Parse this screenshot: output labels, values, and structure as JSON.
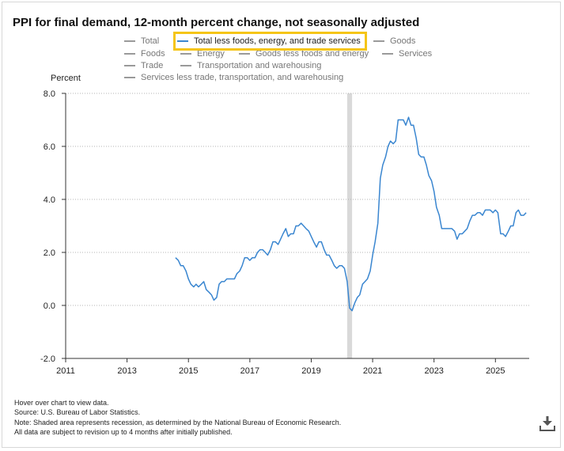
{
  "chart_title": "PPI for final demand, 12-month percent change, not seasonally adjusted",
  "legend": [
    {
      "label": "Total",
      "active": false
    },
    {
      "label": "Total less foods, energy, and trade services",
      "active": true
    },
    {
      "label": "Goods",
      "active": false
    },
    {
      "label": "Foods",
      "active": false
    },
    {
      "label": "Energy",
      "active": false
    },
    {
      "label": "Goods less foods and energy",
      "active": false
    },
    {
      "label": "Services",
      "active": false
    },
    {
      "label": "Trade",
      "active": false
    },
    {
      "label": "Transportation and warehousing",
      "active": false
    },
    {
      "label": "Services less trade, transportation, and warehousing",
      "active": false
    }
  ],
  "footer": {
    "line1": "Hover over chart to view data.",
    "line2": "Source: U.S. Bureau of Labor Statistics.",
    "line3": "Note: Shaded area represents recession, as determined by the National Bureau of Economic Research.",
    "line4": "All data are subject to revision up to 4 months after initially published."
  },
  "icons": {
    "download": "download-icon"
  },
  "colors": {
    "series": "#3a86d0",
    "recession": "#d9d9d9",
    "highlight": "#f5c518",
    "legend_inactive": "#9a9a9a"
  },
  "chart_data": {
    "type": "line",
    "title": "PPI for final demand, 12-month percent change, not seasonally adjusted",
    "ylabel": "Percent",
    "xlabel": "",
    "ylim": [
      -2.0,
      8.0
    ],
    "xlim": [
      2011.0,
      2026.1
    ],
    "yticks": [
      -2.0,
      0.0,
      2.0,
      4.0,
      6.0,
      8.0
    ],
    "ytick_labels": [
      "-2.0",
      "0.0",
      "2.0",
      "4.0",
      "6.0",
      "8.0"
    ],
    "xticks": [
      2011,
      2013,
      2015,
      2017,
      2019,
      2021,
      2023,
      2025
    ],
    "xtick_labels": [
      "2011",
      "2013",
      "2015",
      "2017",
      "2019",
      "2021",
      "2023",
      "2025"
    ],
    "grid": "horizontal dotted",
    "recession": {
      "start": 2020.17,
      "end": 2020.33
    },
    "series": [
      {
        "name": "Total less foods, energy, and trade services",
        "x": [
          2014.58,
          2014.67,
          2014.75,
          2014.83,
          2014.92,
          2015.0,
          2015.08,
          2015.17,
          2015.25,
          2015.33,
          2015.42,
          2015.5,
          2015.58,
          2015.67,
          2015.75,
          2015.83,
          2015.92,
          2016.0,
          2016.08,
          2016.17,
          2016.25,
          2016.33,
          2016.42,
          2016.5,
          2016.58,
          2016.67,
          2016.75,
          2016.83,
          2016.92,
          2017.0,
          2017.08,
          2017.17,
          2017.25,
          2017.33,
          2017.42,
          2017.5,
          2017.58,
          2017.67,
          2017.75,
          2017.83,
          2017.92,
          2018.0,
          2018.08,
          2018.17,
          2018.25,
          2018.33,
          2018.42,
          2018.5,
          2018.58,
          2018.67,
          2018.75,
          2018.83,
          2018.92,
          2019.0,
          2019.08,
          2019.17,
          2019.25,
          2019.33,
          2019.42,
          2019.5,
          2019.58,
          2019.67,
          2019.75,
          2019.83,
          2019.92,
          2020.0,
          2020.08,
          2020.17,
          2020.25,
          2020.33,
          2020.42,
          2020.5,
          2020.58,
          2020.67,
          2020.75,
          2020.83,
          2020.92,
          2021.0,
          2021.08,
          2021.17,
          2021.25,
          2021.33,
          2021.42,
          2021.5,
          2021.58,
          2021.67,
          2021.75,
          2021.83,
          2021.92,
          2022.0,
          2022.08,
          2022.17,
          2022.25,
          2022.33,
          2022.42,
          2022.5,
          2022.58,
          2022.67,
          2022.75,
          2022.83,
          2022.92,
          2023.0,
          2023.08,
          2023.17,
          2023.25,
          2023.33,
          2023.42,
          2023.5,
          2023.58,
          2023.67,
          2023.75,
          2023.83,
          2023.92,
          2024.0,
          2024.08,
          2024.17,
          2024.25,
          2024.33,
          2024.42,
          2024.5,
          2024.58,
          2024.67,
          2024.75,
          2024.83,
          2024.92,
          2025.0,
          2025.08,
          2025.17,
          2025.25,
          2025.33,
          2025.42,
          2025.5,
          2025.58,
          2025.67,
          2025.75,
          2025.83,
          2025.92,
          2026.0
        ],
        "values": [
          1.8,
          1.7,
          1.5,
          1.5,
          1.3,
          1.0,
          0.8,
          0.7,
          0.8,
          0.7,
          0.8,
          0.9,
          0.6,
          0.5,
          0.4,
          0.2,
          0.3,
          0.8,
          0.9,
          0.9,
          1.0,
          1.0,
          1.0,
          1.0,
          1.2,
          1.3,
          1.5,
          1.8,
          1.8,
          1.7,
          1.8,
          1.8,
          2.0,
          2.1,
          2.1,
          2.0,
          1.9,
          2.1,
          2.4,
          2.4,
          2.3,
          2.5,
          2.7,
          2.9,
          2.6,
          2.7,
          2.7,
          3.0,
          3.0,
          3.1,
          3.0,
          2.9,
          2.8,
          2.6,
          2.4,
          2.2,
          2.4,
          2.4,
          2.1,
          1.9,
          1.9,
          1.7,
          1.5,
          1.4,
          1.5,
          1.5,
          1.4,
          0.9,
          -0.1,
          -0.2,
          0.1,
          0.3,
          0.4,
          0.8,
          0.9,
          1.0,
          1.3,
          1.9,
          2.4,
          3.1,
          4.8,
          5.3,
          5.6,
          6.0,
          6.2,
          6.1,
          6.2,
          7.0,
          7.0,
          7.0,
          6.8,
          7.1,
          6.8,
          6.8,
          6.3,
          5.7,
          5.6,
          5.6,
          5.3,
          4.9,
          4.7,
          4.3,
          3.7,
          3.4,
          2.9,
          2.9,
          2.9,
          2.9,
          2.9,
          2.8,
          2.5,
          2.7,
          2.7,
          2.8,
          2.9,
          3.2,
          3.4,
          3.4,
          3.5,
          3.5,
          3.4,
          3.6,
          3.6,
          3.6,
          3.5,
          3.6,
          3.5,
          2.7,
          2.7,
          2.6,
          2.8,
          3.0,
          3.0,
          3.5,
          3.6,
          3.4,
          3.4,
          3.5
        ]
      }
    ]
  }
}
